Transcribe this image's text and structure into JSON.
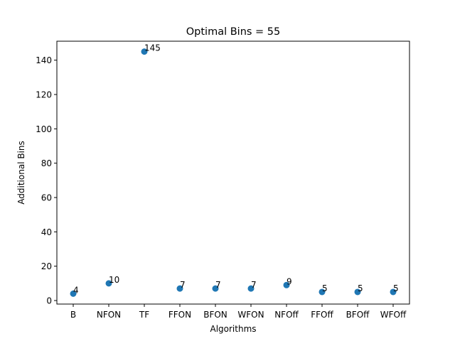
{
  "chart_data": {
    "type": "scatter",
    "title": "Optimal Bins = 55",
    "xlabel": "Algorithms",
    "ylabel": "Additional Bins",
    "categories": [
      "B",
      "NFON",
      "TF",
      "FFON",
      "BFON",
      "WFON",
      "NFOff",
      "FFOff",
      "BFOff",
      "WFOff"
    ],
    "values": [
      4,
      10,
      145,
      7,
      7,
      7,
      9,
      5,
      5,
      5
    ],
    "point_labels": [
      "4",
      "10",
      "145",
      "7",
      "7",
      "7",
      "9",
      "5",
      "5",
      "5"
    ],
    "ylim": [
      -2.05,
      151.05
    ],
    "yticks": [
      0,
      20,
      40,
      60,
      80,
      100,
      120,
      140
    ],
    "ytick_labels": [
      "0",
      "20",
      "40",
      "60",
      "80",
      "100",
      "120",
      "140"
    ],
    "grid": false,
    "legend": false,
    "marker_color": "#1f77b4"
  }
}
